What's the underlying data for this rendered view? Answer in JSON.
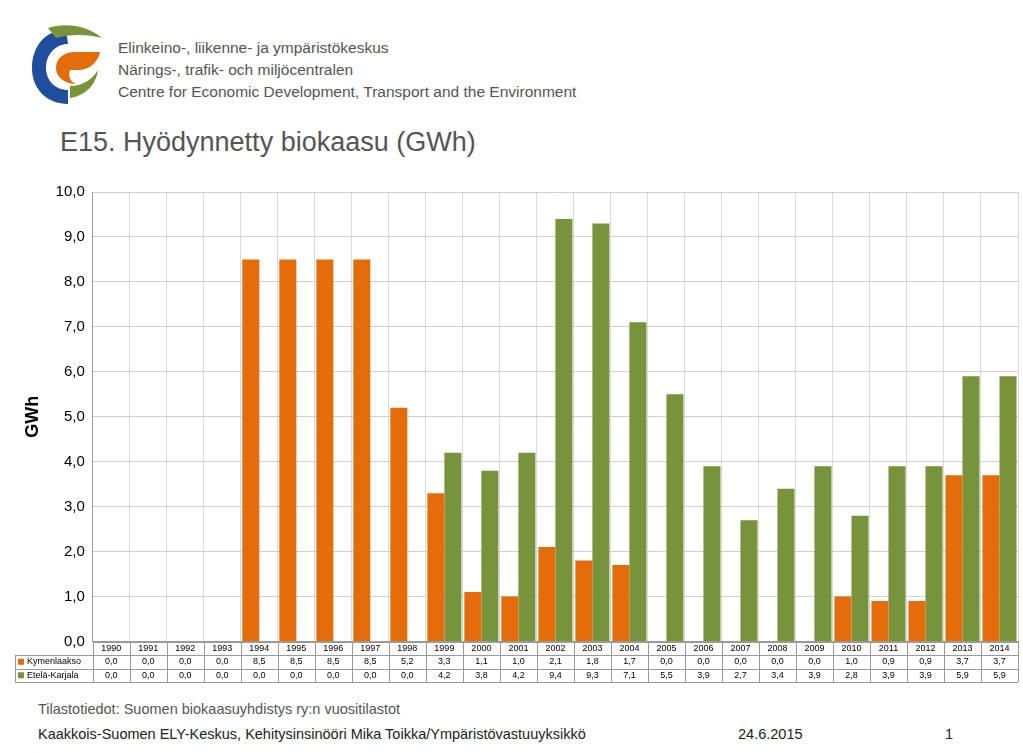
{
  "header": {
    "lines": [
      "Elinkeino-, liikenne- ja ympäristökeskus",
      "Närings-, trafik- och miljöcentralen",
      "Centre for Economic Development, Transport and the Environment"
    ]
  },
  "chart_data": {
    "type": "bar",
    "title": "E15. Hyödynnetty biokaasu (GWh)",
    "y_label": "GWh",
    "categories": [
      "1990",
      "1991",
      "1992",
      "1993",
      "1994",
      "1995",
      "1996",
      "1997",
      "1998",
      "1999",
      "2000",
      "2001",
      "2002",
      "2003",
      "2004",
      "2005",
      "2006",
      "2007",
      "2008",
      "2009",
      "2010",
      "2011",
      "2012",
      "2013",
      "2014"
    ],
    "series": [
      {
        "name": "Kymenlaakso",
        "color": "#e46c0a",
        "values": [
          0,
          0,
          0,
          0,
          8.5,
          8.5,
          8.5,
          8.5,
          5.2,
          3.3,
          1.1,
          1.0,
          2.1,
          1.8,
          1.7,
          0,
          0,
          0,
          0,
          0,
          1.0,
          0.9,
          0.9,
          3.7,
          3.7
        ],
        "value_labels": [
          "0,0",
          "0,0",
          "0,0",
          "0,0",
          "8,5",
          "8,5",
          "8,5",
          "8,5",
          "5,2",
          "3,3",
          "1,1",
          "1,0",
          "2,1",
          "1,8",
          "1,7",
          "0,0",
          "0,0",
          "0,0",
          "0,0",
          "0,0",
          "1,0",
          "0,9",
          "0,9",
          "3,7",
          "3,7"
        ]
      },
      {
        "name": "Etelä-Karjala",
        "color": "#77933c",
        "values": [
          0,
          0,
          0,
          0,
          0,
          0,
          0,
          0,
          0,
          4.2,
          3.8,
          4.2,
          9.4,
          9.3,
          7.1,
          5.5,
          3.9,
          2.7,
          3.4,
          3.9,
          2.8,
          3.9,
          3.9,
          5.9,
          5.9
        ],
        "value_labels": [
          "0,0",
          "0,0",
          "0,0",
          "0,0",
          "0,0",
          "0,0",
          "0,0",
          "0,0",
          "0,0",
          "4,2",
          "3,8",
          "4,2",
          "9,4",
          "9,3",
          "7,1",
          "5,5",
          "3,9",
          "2,7",
          "3,4",
          "3,9",
          "2,8",
          "3,9",
          "3,9",
          "5,9",
          "5,9"
        ]
      }
    ],
    "ylim": [
      0,
      10
    ],
    "yticks": [
      {
        "value": 0,
        "label": "0,0"
      },
      {
        "value": 1,
        "label": "1,0"
      },
      {
        "value": 2,
        "label": "2,0"
      },
      {
        "value": 3,
        "label": "3,0"
      },
      {
        "value": 4,
        "label": "4,0"
      },
      {
        "value": 5,
        "label": "5,0"
      },
      {
        "value": 6,
        "label": "6,0"
      },
      {
        "value": 7,
        "label": "7,0"
      },
      {
        "value": 8,
        "label": "8,0"
      },
      {
        "value": 9,
        "label": "9,0"
      },
      {
        "value": 10,
        "label": "10,0"
      }
    ],
    "grid": true,
    "data_labels": true
  },
  "footer": {
    "source": "Tilastotiedot: Suomen biokaasuyhdistys ry:n vuositilastot",
    "author": "Kaakkois-Suomen ELY-Keskus, Kehitysinsinööri Mika Toikka/Ympäristövastuuyksikkö",
    "date": "24.6.2015",
    "page": "1"
  }
}
